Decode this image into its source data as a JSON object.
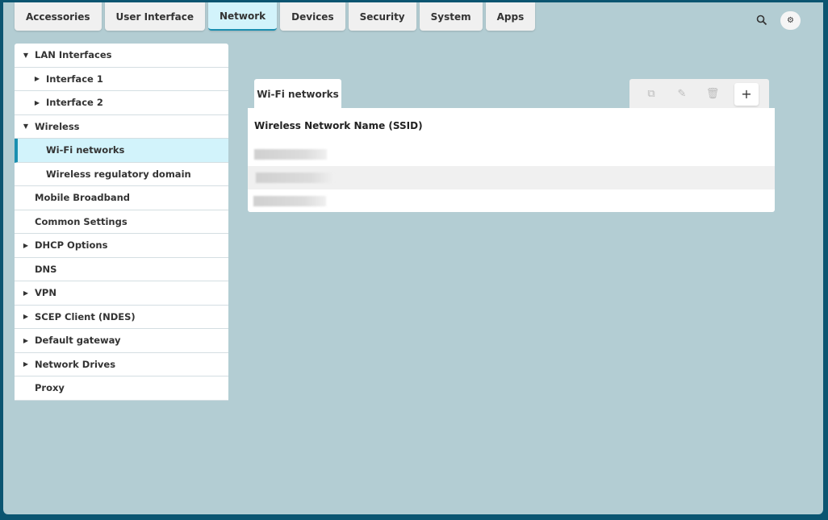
{
  "top_tabs": [
    {
      "label": "Accessories"
    },
    {
      "label": "User Interface"
    },
    {
      "label": "Network",
      "active": true
    },
    {
      "label": "Devices"
    },
    {
      "label": "Security"
    },
    {
      "label": "System"
    },
    {
      "label": "Apps"
    }
  ],
  "header": {
    "search_icon": "search-icon",
    "avatar_icon": "user-avatar-icon"
  },
  "sidebar": {
    "items": [
      {
        "label": "LAN Interfaces",
        "level": 0,
        "caret": "down"
      },
      {
        "label": "Interface 1",
        "level": 1,
        "caret": "right"
      },
      {
        "label": "Interface 2",
        "level": 1,
        "caret": "right"
      },
      {
        "label": "Wireless",
        "level": 0,
        "caret": "down"
      },
      {
        "label": "Wi-Fi networks",
        "level": 1,
        "caret": "",
        "selected": true
      },
      {
        "label": "Wireless regulatory domain",
        "level": 1,
        "caret": ""
      },
      {
        "label": "Mobile Broadband",
        "level": 0,
        "caret": ""
      },
      {
        "label": "Common Settings",
        "level": 0,
        "caret": ""
      },
      {
        "label": "DHCP Options",
        "level": 0,
        "caret": "right"
      },
      {
        "label": "DNS",
        "level": 0,
        "caret": ""
      },
      {
        "label": "VPN",
        "level": 0,
        "caret": "right"
      },
      {
        "label": "SCEP Client (NDES)",
        "level": 0,
        "caret": "right"
      },
      {
        "label": "Default gateway",
        "level": 0,
        "caret": "right"
      },
      {
        "label": "Network Drives",
        "level": 0,
        "caret": "right"
      },
      {
        "label": "Proxy",
        "level": 0,
        "caret": ""
      }
    ]
  },
  "panel": {
    "tab_label": "Wi-Fi networks",
    "toolbar": {
      "copy": "copy-icon",
      "edit": "pencil-icon",
      "delete": "trash-icon",
      "add": "+"
    },
    "column_header": "Wireless Network Name (SSID)",
    "rows": [
      {
        "blurred": true
      },
      {
        "blurred": true
      },
      {
        "blurred": true
      }
    ]
  },
  "colors": {
    "accent": "#1a8fb0",
    "selected_bg": "#d2f3fb",
    "background": "#b3cdd3",
    "frame": "#0b5571"
  }
}
